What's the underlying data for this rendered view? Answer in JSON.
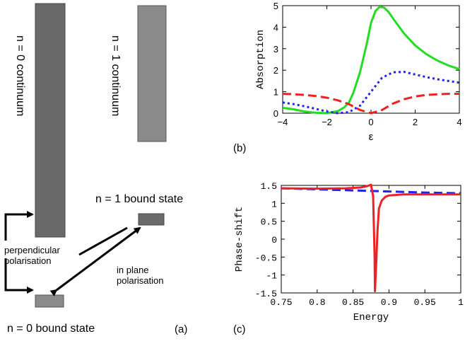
{
  "panel_a": {
    "label": "(a)",
    "continuum_n0": "n = 0 continuum",
    "continuum_n1": "n = 1 continuum",
    "bound_n1": "n = 1 bound state",
    "bound_n0": "n = 0 bound state",
    "perp_line1": "perpendicular",
    "perp_line2": "polarisation",
    "inplane_line1": "in plane",
    "inplane_line2": "polarisation",
    "colors": {
      "n0": "#6a6a6a",
      "n1": "#8b8b8b"
    }
  },
  "panel_b_label": "(b)",
  "panel_c_label": "(c)",
  "chart_data": [
    {
      "id": "b",
      "type": "line",
      "xlabel": "ε",
      "ylabel": "Absorption",
      "xlim": [
        -4,
        4
      ],
      "ylim": [
        0,
        5
      ],
      "xticks": [
        -4,
        -2,
        0,
        2,
        4
      ],
      "yticks": [
        0,
        1,
        2,
        3,
        4,
        5
      ],
      "series": [
        {
          "color": "#22dd22",
          "style": "solid",
          "x": [
            -4,
            -3.5,
            -3,
            -2.5,
            -2,
            -1.5,
            -1.2,
            -1,
            -0.8,
            -0.5,
            -0.2,
            0,
            0.2,
            0.4,
            0.6,
            0.8,
            1,
            1.5,
            2,
            2.5,
            3,
            3.5,
            4
          ],
          "y": [
            0.25,
            0.18,
            0.08,
            0.02,
            0.0,
            0.1,
            0.28,
            0.5,
            0.95,
            1.9,
            3.2,
            4.2,
            4.75,
            4.95,
            4.9,
            4.7,
            4.4,
            3.7,
            3.15,
            2.75,
            2.45,
            2.22,
            2.05
          ]
        },
        {
          "color": "#2222ee",
          "style": "dotted",
          "x": [
            -4,
            -3.5,
            -3,
            -2.5,
            -2,
            -1.5,
            -1,
            -0.5,
            0,
            0.5,
            1,
            1.5,
            2,
            2.5,
            3,
            3.5,
            4
          ],
          "y": [
            0.5,
            0.42,
            0.32,
            0.2,
            0.08,
            0.0,
            0.05,
            0.35,
            1.0,
            1.65,
            1.9,
            1.92,
            1.8,
            1.68,
            1.58,
            1.5,
            1.42
          ]
        },
        {
          "color": "#ee2222",
          "style": "dashed",
          "x": [
            -4,
            -3.5,
            -3,
            -2.5,
            -2,
            -1.5,
            -1,
            -0.5,
            0,
            0.5,
            1,
            1.5,
            2,
            2.5,
            3,
            3.5,
            4
          ],
          "y": [
            0.9,
            0.88,
            0.85,
            0.8,
            0.72,
            0.6,
            0.42,
            0.15,
            0.0,
            0.15,
            0.45,
            0.65,
            0.78,
            0.85,
            0.88,
            0.9,
            0.9
          ]
        }
      ]
    },
    {
      "id": "c",
      "type": "line",
      "xlabel": "Energy",
      "ylabel": "Phase-shift",
      "xlim": [
        0.75,
        1.0
      ],
      "ylim": [
        -1.5,
        1.5
      ],
      "xticks": [
        0.75,
        0.8,
        0.85,
        0.9,
        0.95,
        1
      ],
      "yticks": [
        -1.5,
        -1,
        -0.5,
        0,
        0.5,
        1,
        1.5
      ],
      "series": [
        {
          "color": "#2222ee",
          "style": "dashed",
          "x": [
            0.75,
            0.8,
            0.85,
            0.9,
            0.95,
            1.0
          ],
          "y": [
            1.42,
            1.39,
            1.36,
            1.33,
            1.3,
            1.28
          ]
        },
        {
          "color": "#ee2222",
          "style": "solid",
          "x": [
            0.75,
            0.8,
            0.84,
            0.86,
            0.87,
            0.875,
            0.878,
            0.88,
            0.8805,
            0.882,
            0.884,
            0.886,
            0.89,
            0.895,
            0.9,
            0.92,
            0.95,
            1.0
          ],
          "y": [
            1.42,
            1.41,
            1.42,
            1.44,
            1.48,
            1.52,
            1.2,
            -0.5,
            -1.45,
            -0.8,
            0.2,
            0.85,
            1.08,
            1.18,
            1.22,
            1.25,
            1.25,
            1.25
          ]
        }
      ]
    }
  ]
}
